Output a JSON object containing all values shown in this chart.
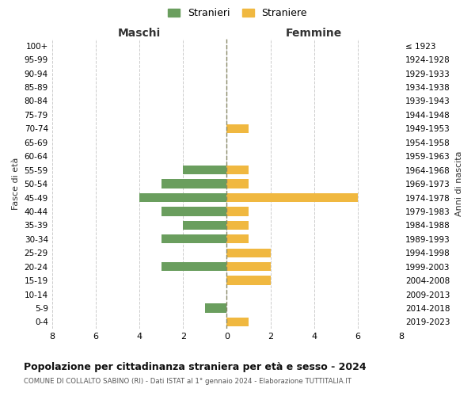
{
  "age_groups": [
    "100+",
    "95-99",
    "90-94",
    "85-89",
    "80-84",
    "75-79",
    "70-74",
    "65-69",
    "60-64",
    "55-59",
    "50-54",
    "45-49",
    "40-44",
    "35-39",
    "30-34",
    "25-29",
    "20-24",
    "15-19",
    "10-14",
    "5-9",
    "0-4"
  ],
  "birth_years": [
    "≤ 1923",
    "1924-1928",
    "1929-1933",
    "1934-1938",
    "1939-1943",
    "1944-1948",
    "1949-1953",
    "1954-1958",
    "1959-1963",
    "1964-1968",
    "1969-1973",
    "1974-1978",
    "1979-1983",
    "1984-1988",
    "1989-1993",
    "1994-1998",
    "1999-2003",
    "2004-2008",
    "2009-2013",
    "2014-2018",
    "2019-2023"
  ],
  "maschi": [
    0,
    0,
    0,
    0,
    0,
    0,
    0,
    0,
    0,
    2,
    3,
    4,
    3,
    2,
    3,
    0,
    3,
    0,
    0,
    1,
    0
  ],
  "femmine": [
    0,
    0,
    0,
    0,
    0,
    0,
    1,
    0,
    0,
    1,
    1,
    6,
    1,
    1,
    1,
    2,
    2,
    2,
    0,
    0,
    1
  ],
  "color_maschi": "#6a9e5e",
  "color_femmine": "#f0b840",
  "title": "Popolazione per cittadinanza straniera per età e sesso - 2024",
  "subtitle": "COMUNE DI COLLALTO SABINO (RI) - Dati ISTAT al 1° gennaio 2024 - Elaborazione TUTTITALIA.IT",
  "legend_maschi": "Stranieri",
  "legend_femmine": "Straniere",
  "xlabel_left": "Maschi",
  "xlabel_right": "Femmine",
  "ylabel_left": "Fasce di età",
  "ylabel_right": "Anni di nascita",
  "xlim": 8,
  "background_color": "#ffffff"
}
